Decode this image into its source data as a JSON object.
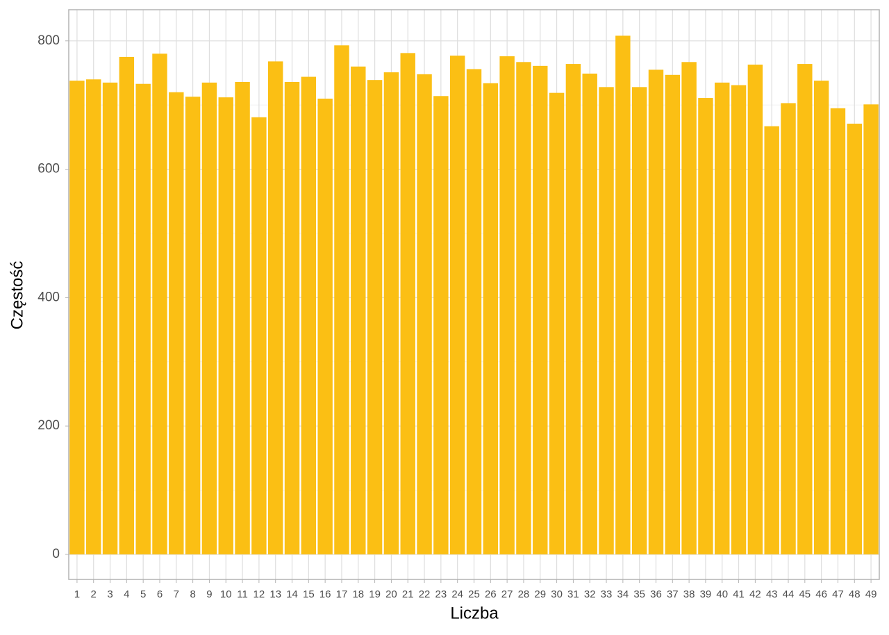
{
  "chart_data": {
    "type": "bar",
    "x_label": "Liczba",
    "y_label": "Częstość",
    "categories": [
      "1",
      "2",
      "3",
      "4",
      "5",
      "6",
      "7",
      "8",
      "9",
      "10",
      "11",
      "12",
      "13",
      "14",
      "15",
      "16",
      "17",
      "18",
      "19",
      "20",
      "21",
      "22",
      "23",
      "24",
      "25",
      "26",
      "27",
      "28",
      "29",
      "30",
      "31",
      "32",
      "33",
      "34",
      "35",
      "36",
      "37",
      "38",
      "39",
      "40",
      "41",
      "42",
      "43",
      "44",
      "45",
      "46",
      "47",
      "48",
      "49"
    ],
    "values": [
      738,
      740,
      735,
      775,
      733,
      780,
      720,
      713,
      735,
      712,
      736,
      681,
      768,
      736,
      744,
      710,
      793,
      760,
      739,
      751,
      781,
      748,
      714,
      777,
      756,
      734,
      776,
      767,
      761,
      719,
      764,
      749,
      728,
      808,
      728,
      755,
      747,
      767,
      711,
      735,
      731,
      763,
      667,
      703,
      764,
      738,
      695,
      671,
      701
    ],
    "color": "#fbbf14",
    "ylim": [
      -39,
      848.5
    ],
    "yticks": [
      0,
      200,
      400,
      600,
      800
    ],
    "grid": true
  }
}
